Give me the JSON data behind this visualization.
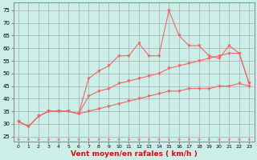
{
  "x": [
    0,
    1,
    2,
    3,
    4,
    5,
    6,
    7,
    8,
    9,
    10,
    11,
    12,
    13,
    14,
    15,
    16,
    17,
    18,
    19,
    20,
    21,
    22,
    23
  ],
  "line1": [
    31,
    29,
    33,
    35,
    35,
    35,
    34,
    48,
    51,
    53,
    57,
    57,
    62,
    57,
    57,
    75,
    65,
    61,
    61,
    57,
    56,
    61,
    58,
    46
  ],
  "line2": [
    31,
    29,
    33,
    35,
    35,
    35,
    34,
    41,
    43,
    44,
    46,
    47,
    48,
    49,
    50,
    52,
    53,
    54,
    55,
    56,
    57,
    58,
    58,
    46
  ],
  "line3": [
    31,
    29,
    33,
    35,
    35,
    35,
    34,
    35,
    36,
    37,
    38,
    39,
    40,
    41,
    42,
    43,
    43,
    44,
    44,
    44,
    45,
    45,
    46,
    45
  ],
  "bg_color": "#cceee8",
  "grid_color": "#aaaaaa",
  "line_color": "#ee6666",
  "xlabel": "Vent moyen/en rafales ( km/h )",
  "ylim": [
    23,
    78
  ],
  "xlim": [
    -0.5,
    23.5
  ],
  "yticks": [
    25,
    30,
    35,
    40,
    45,
    50,
    55,
    60,
    65,
    70,
    75
  ],
  "xticks": [
    0,
    1,
    2,
    3,
    4,
    5,
    6,
    7,
    8,
    9,
    10,
    11,
    12,
    13,
    14,
    15,
    16,
    17,
    18,
    19,
    20,
    21,
    22,
    23
  ]
}
